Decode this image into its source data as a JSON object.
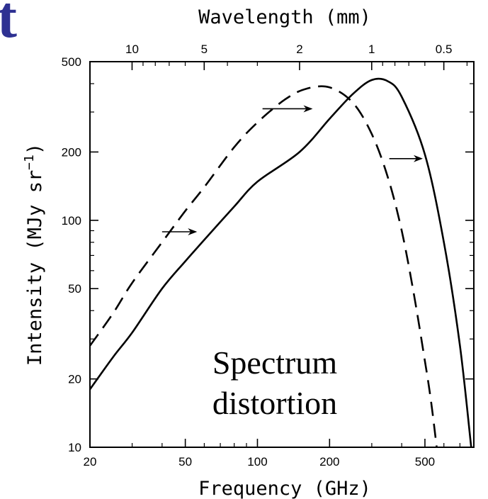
{
  "corner_fragment": "t",
  "chart_data": {
    "type": "line",
    "xlabel": "Frequency (GHz)",
    "x2label": "Wavelength (mm)",
    "ylabel": "Intensity (MJy sr",
    "ylabel_exponent": "−1",
    "ylabel_suffix": ")",
    "xscale": "log",
    "yscale": "log",
    "xlim": [
      20,
      800
    ],
    "ylim": [
      10,
      500
    ],
    "grid": false,
    "x_ticks": [
      20,
      50,
      100,
      200,
      500
    ],
    "x_tick_labels": [
      "20",
      "50",
      "100",
      "200",
      "500"
    ],
    "y_ticks": [
      10,
      20,
      50,
      100,
      200,
      500
    ],
    "y_tick_labels": [
      "10",
      "20",
      "50",
      "100",
      "200",
      "500"
    ],
    "x2_ticks_mm": [
      10,
      5,
      2,
      1,
      0.5
    ],
    "x2_tick_labels": [
      "10",
      "5",
      "2",
      "1",
      "0.5"
    ],
    "annotation_lines": [
      "Spectrum",
      "distortion"
    ],
    "series": [
      {
        "style": "dashed",
        "x": [
          20,
          25,
          30,
          40,
          50,
          60,
          80,
          100,
          130,
          160,
          200,
          250,
          300,
          350,
          400,
          450,
          500,
          530,
          560
        ],
        "y": [
          28,
          39,
          53,
          80,
          110,
          140,
          210,
          270,
          340,
          380,
          385,
          330,
          240,
          155,
          90,
          47,
          24,
          16,
          10
        ]
      },
      {
        "style": "solid",
        "x": [
          20,
          25,
          30,
          40,
          50,
          60,
          80,
          100,
          150,
          200,
          250,
          300,
          350,
          400,
          500,
          600,
          700,
          780
        ],
        "y": [
          18,
          25,
          32,
          50,
          66,
          82,
          115,
          148,
          200,
          280,
          360,
          415,
          410,
          350,
          195,
          80,
          28,
          10
        ]
      }
    ],
    "arrows": [
      {
        "x_from": 40,
        "x_to": 56,
        "y": 89
      },
      {
        "x_from": 105,
        "x_to": 170,
        "y": 310
      },
      {
        "x_from": 355,
        "x_to": 490,
        "y": 187
      }
    ]
  }
}
